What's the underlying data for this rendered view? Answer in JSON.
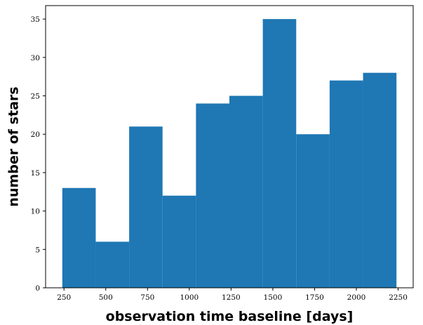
{
  "chart_data": {
    "type": "bar",
    "title": "",
    "xlabel": "observation time baseline [days]",
    "ylabel": "number of stars",
    "bins": [
      {
        "x0": 240,
        "x1": 440,
        "value": 13
      },
      {
        "x0": 440,
        "x1": 640,
        "value": 6
      },
      {
        "x0": 640,
        "x1": 840,
        "value": 21
      },
      {
        "x0": 840,
        "x1": 1040,
        "value": 12
      },
      {
        "x0": 1040,
        "x1": 1240,
        "value": 24
      },
      {
        "x0": 1240,
        "x1": 1440,
        "value": 25
      },
      {
        "x0": 1440,
        "x1": 1640,
        "value": 35
      },
      {
        "x0": 1640,
        "x1": 1840,
        "value": 20
      },
      {
        "x0": 1840,
        "x1": 2040,
        "value": 27
      },
      {
        "x0": 2040,
        "x1": 2240,
        "value": 28
      }
    ],
    "xlim": [
      140,
      2340
    ],
    "ylim": [
      0,
      36.75
    ],
    "xticks": [
      250,
      500,
      750,
      1000,
      1250,
      1500,
      1750,
      2000,
      2250
    ],
    "yticks": [
      0,
      5,
      10,
      15,
      20,
      25,
      30,
      35
    ],
    "grid": false,
    "legend": "none",
    "colors": {
      "bar": "#1f77b4",
      "axis": "#000000",
      "background": "#ffffff"
    }
  }
}
